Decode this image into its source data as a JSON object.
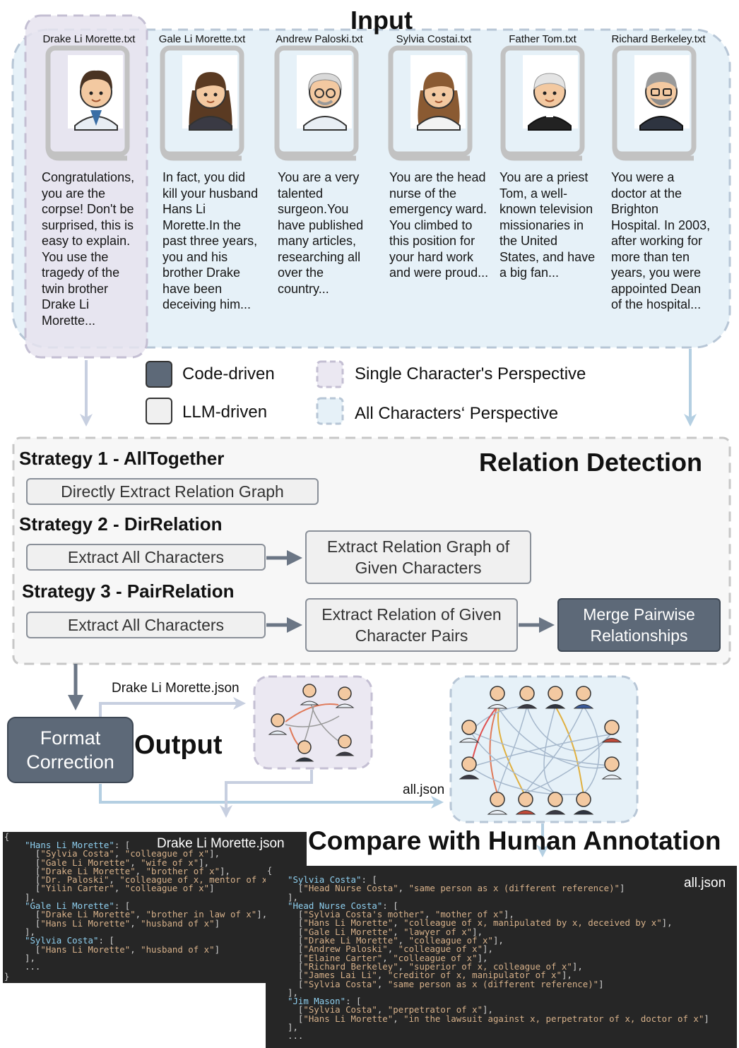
{
  "input": {
    "title": "Input",
    "characters": [
      {
        "file": "Drake Li Morette.txt",
        "text": "Congratulations, you are the corpse! Don't be surprised, this is easy to explain. You use the tragedy of the twin brother Drake Li Morette..."
      },
      {
        "file": "Gale Li Morette.txt",
        "text": "In fact, you did kill your husband Hans Li Morette.In the past three years, you and his brother Drake have been deceiving him..."
      },
      {
        "file": "Andrew Paloski.txt",
        "text": "You are a very talented surgeon.You have published many articles, researching all over the country..."
      },
      {
        "file": "Sylvia Costai.txt",
        "text": "You are the head nurse of the emergency ward. You climbed to this position for your hard work and were proud..."
      },
      {
        "file": "Father Tom.txt",
        "text": "You are a priest Tom, a well-known television missionaries in the United States, and have a big fan..."
      },
      {
        "file": "Richard Berkeley.txt",
        "text": "You were a doctor at the Brighton Hospital. In 2003, after working for more than ten years, you were appointed Dean of the hospital..."
      }
    ]
  },
  "legend": {
    "code_driven": "Code-driven",
    "llm_driven": "LLM-driven",
    "single": "Single Character's Perspective",
    "all": "All Characters‘ Perspective"
  },
  "relation": {
    "title": "Relation Detection",
    "s1_title": "Strategy 1 - AllTogether",
    "s1_step": "Directly Extract Relation Graph",
    "s2_title": "Strategy 2 - DirRelation",
    "s2_step1": "Extract All Characters",
    "s2_step2_line1": "Extract Relation Graph of",
    "s2_step2_line2": "Given Characters",
    "s3_title": "Strategy 3 - PairRelation",
    "s3_step1": "Extract All Characters",
    "s3_step2_line1": "Extract Relation of Given",
    "s3_step2_line2": "Character Pairs",
    "s3_step3_line1": "Merge Pairwise",
    "s3_step3_line2": "Relationships"
  },
  "output": {
    "format_line1": "Format",
    "format_line2": "Correction",
    "title": "Output",
    "drake_json": "Drake Li Morette.json",
    "all_json": "all.json"
  },
  "compare": {
    "title": "Compare with Human Annotation"
  },
  "code_left": {
    "title": "Drake Li Morette.json",
    "lines": [
      [
        [
          "k",
          "\"Hans Li Morette\""
        ],
        [
          "p",
          ": ["
        ]
      ],
      [
        [
          "p",
          "  ["
        ],
        [
          "s",
          "\"Sylvia Costa\""
        ],
        [
          "p",
          ", "
        ],
        [
          "s",
          "\"colleague of x\""
        ],
        [
          "p",
          "],"
        ]
      ],
      [
        [
          "p",
          "  ["
        ],
        [
          "s",
          "\"Gale Li Morette\""
        ],
        [
          "p",
          ", "
        ],
        [
          "s",
          "\"wife of x\""
        ],
        [
          "p",
          "],"
        ]
      ],
      [
        [
          "p",
          "  ["
        ],
        [
          "s",
          "\"Drake Li Morette\""
        ],
        [
          "p",
          ", "
        ],
        [
          "s",
          "\"brother of x\""
        ],
        [
          "p",
          "],"
        ]
      ],
      [
        [
          "p",
          "  ["
        ],
        [
          "s",
          "\"Dr. Paloski\""
        ],
        [
          "p",
          ", "
        ],
        [
          "s",
          "\"colleague of x, mentor of x\""
        ],
        [
          "p",
          "],"
        ]
      ],
      [
        [
          "p",
          "  ["
        ],
        [
          "s",
          "\"Yilin Carter\""
        ],
        [
          "p",
          ", "
        ],
        [
          "s",
          "\"colleague of x\""
        ],
        [
          "p",
          "]"
        ]
      ],
      [
        [
          "p",
          "],"
        ]
      ],
      [
        [
          "k",
          "\"Gale Li Morette\""
        ],
        [
          "p",
          ": ["
        ]
      ],
      [
        [
          "p",
          "  ["
        ],
        [
          "s",
          "\"Drake Li Morette\""
        ],
        [
          "p",
          ", "
        ],
        [
          "s",
          "\"brother in law of x\""
        ],
        [
          "p",
          "],"
        ]
      ],
      [
        [
          "p",
          "  ["
        ],
        [
          "s",
          "\"Hans Li Morette\""
        ],
        [
          "p",
          ", "
        ],
        [
          "s",
          "\"husband of x\""
        ],
        [
          "p",
          "]"
        ]
      ],
      [
        [
          "p",
          "],"
        ]
      ],
      [
        [
          "k",
          "\"Sylvia Costa\""
        ],
        [
          "p",
          ": ["
        ]
      ],
      [
        [
          "p",
          "  ["
        ],
        [
          "s",
          "\"Hans Li Morette\""
        ],
        [
          "p",
          ", "
        ],
        [
          "s",
          "\"husband of x\""
        ],
        [
          "p",
          "]"
        ]
      ],
      [
        [
          "p",
          "],"
        ]
      ],
      [
        [
          "p",
          "..."
        ]
      ]
    ]
  },
  "code_right": {
    "title": "all.json",
    "lines": [
      [
        [
          "k",
          "\"Sylvia Costa\""
        ],
        [
          "p",
          ": ["
        ]
      ],
      [
        [
          "p",
          "  ["
        ],
        [
          "s",
          "\"Head Nurse Costa\""
        ],
        [
          "p",
          ", "
        ],
        [
          "s",
          "\"same person as x (different reference)\""
        ],
        [
          "p",
          "]"
        ]
      ],
      [
        [
          "p",
          "],"
        ]
      ],
      [
        [
          "k",
          "\"Head Nurse Costa\""
        ],
        [
          "p",
          ": ["
        ]
      ],
      [
        [
          "p",
          "  ["
        ],
        [
          "s",
          "\"Sylvia Costa's mother\""
        ],
        [
          "p",
          ", "
        ],
        [
          "s",
          "\"mother of x\""
        ],
        [
          "p",
          "],"
        ]
      ],
      [
        [
          "p",
          "  ["
        ],
        [
          "s",
          "\"Hans Li Morette\""
        ],
        [
          "p",
          ", "
        ],
        [
          "s",
          "\"colleague of x, manipulated by x, deceived by x\""
        ],
        [
          "p",
          "],"
        ]
      ],
      [
        [
          "p",
          "  ["
        ],
        [
          "s",
          "\"Gale Li Morette\""
        ],
        [
          "p",
          ", "
        ],
        [
          "s",
          "\"lawyer of x\""
        ],
        [
          "p",
          "],"
        ]
      ],
      [
        [
          "p",
          "  ["
        ],
        [
          "s",
          "\"Drake Li Morette\""
        ],
        [
          "p",
          ", "
        ],
        [
          "s",
          "\"colleague of x\""
        ],
        [
          "p",
          "],"
        ]
      ],
      [
        [
          "p",
          "  ["
        ],
        [
          "s",
          "\"Andrew Paloski\""
        ],
        [
          "p",
          ", "
        ],
        [
          "s",
          "\"colleague of x\""
        ],
        [
          "p",
          "],"
        ]
      ],
      [
        [
          "p",
          "  ["
        ],
        [
          "s",
          "\"Elaine Carter\""
        ],
        [
          "p",
          ", "
        ],
        [
          "s",
          "\"colleague of x\""
        ],
        [
          "p",
          "],"
        ]
      ],
      [
        [
          "p",
          "  ["
        ],
        [
          "s",
          "\"Richard Berkeley\""
        ],
        [
          "p",
          ", "
        ],
        [
          "s",
          "\"superior of x, colleague of x\""
        ],
        [
          "p",
          "],"
        ]
      ],
      [
        [
          "p",
          "  ["
        ],
        [
          "s",
          "\"James Lai Li\""
        ],
        [
          "p",
          ", "
        ],
        [
          "s",
          "\"creditor of x, manipulator of x\""
        ],
        [
          "p",
          "],"
        ]
      ],
      [
        [
          "p",
          "  ["
        ],
        [
          "s",
          "\"Sylvia Costa\""
        ],
        [
          "p",
          ", "
        ],
        [
          "s",
          "\"same person as x (different reference)\""
        ],
        [
          "p",
          "]"
        ]
      ],
      [
        [
          "p",
          "],"
        ]
      ],
      [
        [
          "k",
          "\"Jim Mason\""
        ],
        [
          "p",
          ": ["
        ]
      ],
      [
        [
          "p",
          "  ["
        ],
        [
          "s",
          "\"Sylvia Costa\""
        ],
        [
          "p",
          ", "
        ],
        [
          "s",
          "\"perpetrator of x\""
        ],
        [
          "p",
          "],"
        ]
      ],
      [
        [
          "p",
          "  ["
        ],
        [
          "s",
          "\"Hans Li Morette\""
        ],
        [
          "p",
          ", "
        ],
        [
          "s",
          "\"in the lawsuit against x, perpetrator of x, doctor of x\""
        ],
        [
          "p",
          "]"
        ]
      ],
      [
        [
          "p",
          "],"
        ]
      ],
      [
        [
          "p",
          "..."
        ]
      ]
    ]
  },
  "colors": {
    "light_blue": "#e6f1f8",
    "light_purple": "#ebe8f2",
    "dashed_gray": "#b7c4d3",
    "dark_box": "#5d6978"
  }
}
